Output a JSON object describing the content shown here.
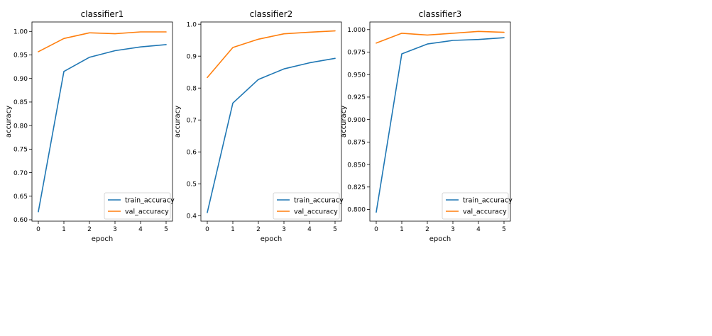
{
  "chart_data": [
    {
      "type": "line",
      "title": "classifier1",
      "xlabel": "epoch",
      "ylabel": "accuracy",
      "x": [
        0,
        1,
        2,
        3,
        4,
        5
      ],
      "xlim": [
        -0.25,
        5.25
      ],
      "ylim": [
        0.597,
        1.02
      ],
      "xticks": [
        "0",
        "1",
        "2",
        "3",
        "4",
        "5"
      ],
      "yticks": [
        0.6,
        0.65,
        0.7,
        0.75,
        0.8,
        0.85,
        0.9,
        0.95,
        1.0
      ],
      "ytick_labels": [
        "0.60",
        "0.65",
        "0.70",
        "0.75",
        "0.80",
        "0.85",
        "0.90",
        "0.95",
        "1.00"
      ],
      "legend_position": "lower right",
      "series": [
        {
          "name": "train_accuracy",
          "color": "#1f77b4",
          "values": [
            0.617,
            0.915,
            0.945,
            0.959,
            0.967,
            0.972
          ]
        },
        {
          "name": "val_accuracy",
          "color": "#ff7f0e",
          "values": [
            0.957,
            0.985,
            0.997,
            0.995,
            0.999,
            0.999
          ]
        }
      ]
    },
    {
      "type": "line",
      "title": "classifier2",
      "xlabel": "epoch",
      "ylabel": "accuracy",
      "x": [
        0,
        1,
        2,
        3,
        4,
        5
      ],
      "xlim": [
        -0.25,
        5.25
      ],
      "ylim": [
        0.383,
        1.007
      ],
      "xticks": [
        "0",
        "1",
        "2",
        "3",
        "4",
        "5"
      ],
      "yticks": [
        0.4,
        0.5,
        0.6,
        0.7,
        0.8,
        0.9,
        1.0
      ],
      "ytick_labels": [
        "0.4",
        "0.5",
        "0.6",
        "0.7",
        "0.8",
        "0.9",
        "1.0"
      ],
      "legend_position": "lower right",
      "series": [
        {
          "name": "train_accuracy",
          "color": "#1f77b4",
          "values": [
            0.41,
            0.753,
            0.827,
            0.86,
            0.879,
            0.893
          ]
        },
        {
          "name": "val_accuracy",
          "color": "#ff7f0e",
          "values": [
            0.833,
            0.927,
            0.953,
            0.97,
            0.975,
            0.979
          ]
        }
      ]
    },
    {
      "type": "line",
      "title": "classifier3",
      "xlabel": "epoch",
      "ylabel": "accuracy",
      "x": [
        0,
        1,
        2,
        3,
        4,
        5
      ],
      "xlim": [
        -0.25,
        5.25
      ],
      "ylim": [
        0.787,
        1.0085
      ],
      "xticks": [
        "0",
        "1",
        "2",
        "3",
        "4",
        "5"
      ],
      "yticks": [
        0.8,
        0.825,
        0.85,
        0.875,
        0.9,
        0.925,
        0.95,
        0.975,
        1.0
      ],
      "ytick_labels": [
        "0.800",
        "0.825",
        "0.850",
        "0.875",
        "0.900",
        "0.925",
        "0.950",
        "0.975",
        "1.000"
      ],
      "legend_position": "lower right",
      "series": [
        {
          "name": "train_accuracy",
          "color": "#1f77b4",
          "values": [
            0.797,
            0.973,
            0.984,
            0.988,
            0.989,
            0.991
          ]
        },
        {
          "name": "val_accuracy",
          "color": "#ff7f0e",
          "values": [
            0.985,
            0.996,
            0.994,
            0.996,
            0.998,
            0.997
          ]
        }
      ]
    }
  ]
}
